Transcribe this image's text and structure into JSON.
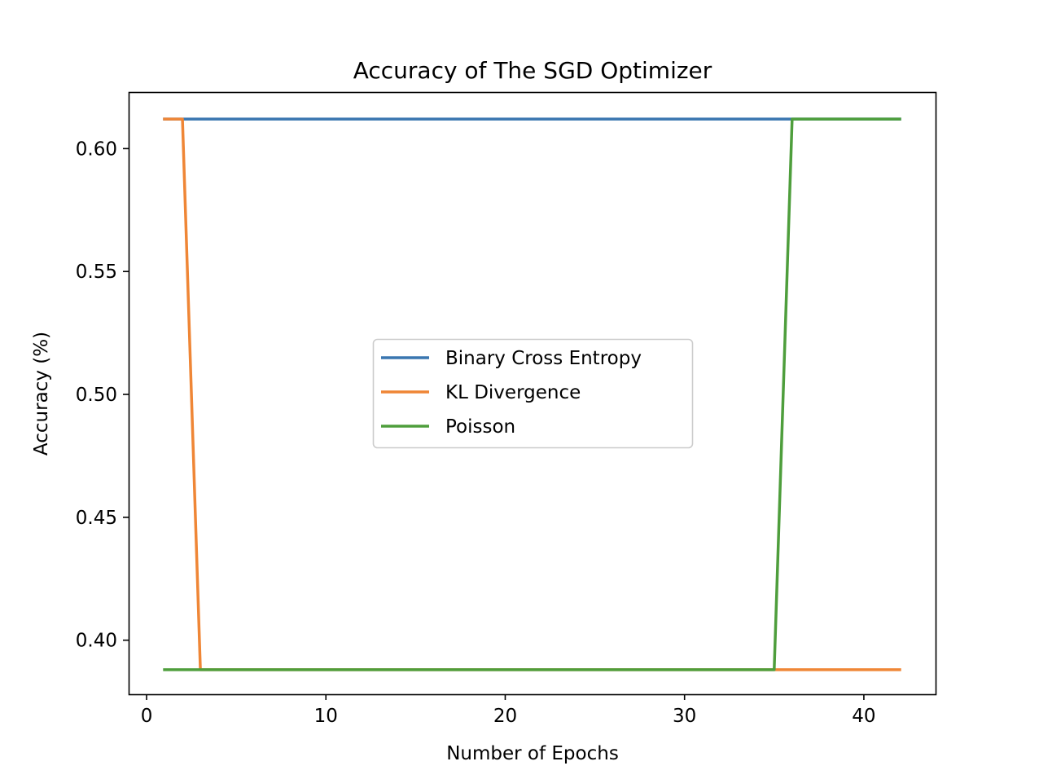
{
  "chart_data": {
    "type": "line",
    "title": "Accuracy of The SGD Optimizer",
    "xlabel": "Number of Epochs",
    "ylabel": "Accuracy (%)",
    "xlim": [
      -1,
      44
    ],
    "ylim": [
      0.378,
      0.623
    ],
    "xticks": [
      0,
      10,
      20,
      30,
      40
    ],
    "xtick_labels": [
      "0",
      "10",
      "20",
      "30",
      "40"
    ],
    "yticks": [
      0.4,
      0.45,
      0.5,
      0.55,
      0.6
    ],
    "ytick_labels": [
      "0.40",
      "0.45",
      "0.50",
      "0.55",
      "0.60"
    ],
    "grid": false,
    "legend_position": "center",
    "series": [
      {
        "name": "Binary Cross Entropy",
        "color": "#3a76b0",
        "x": [
          1,
          36,
          42
        ],
        "y": [
          0.612,
          0.612,
          0.612
        ]
      },
      {
        "name": "KL Divergence",
        "color": "#ef8636",
        "x": [
          1,
          2,
          3,
          42
        ],
        "y": [
          0.612,
          0.612,
          0.388,
          0.388
        ]
      },
      {
        "name": "Poisson",
        "color": "#4e9e3c",
        "x": [
          1,
          35,
          36,
          42
        ],
        "y": [
          0.388,
          0.388,
          0.612,
          0.612
        ]
      }
    ]
  }
}
